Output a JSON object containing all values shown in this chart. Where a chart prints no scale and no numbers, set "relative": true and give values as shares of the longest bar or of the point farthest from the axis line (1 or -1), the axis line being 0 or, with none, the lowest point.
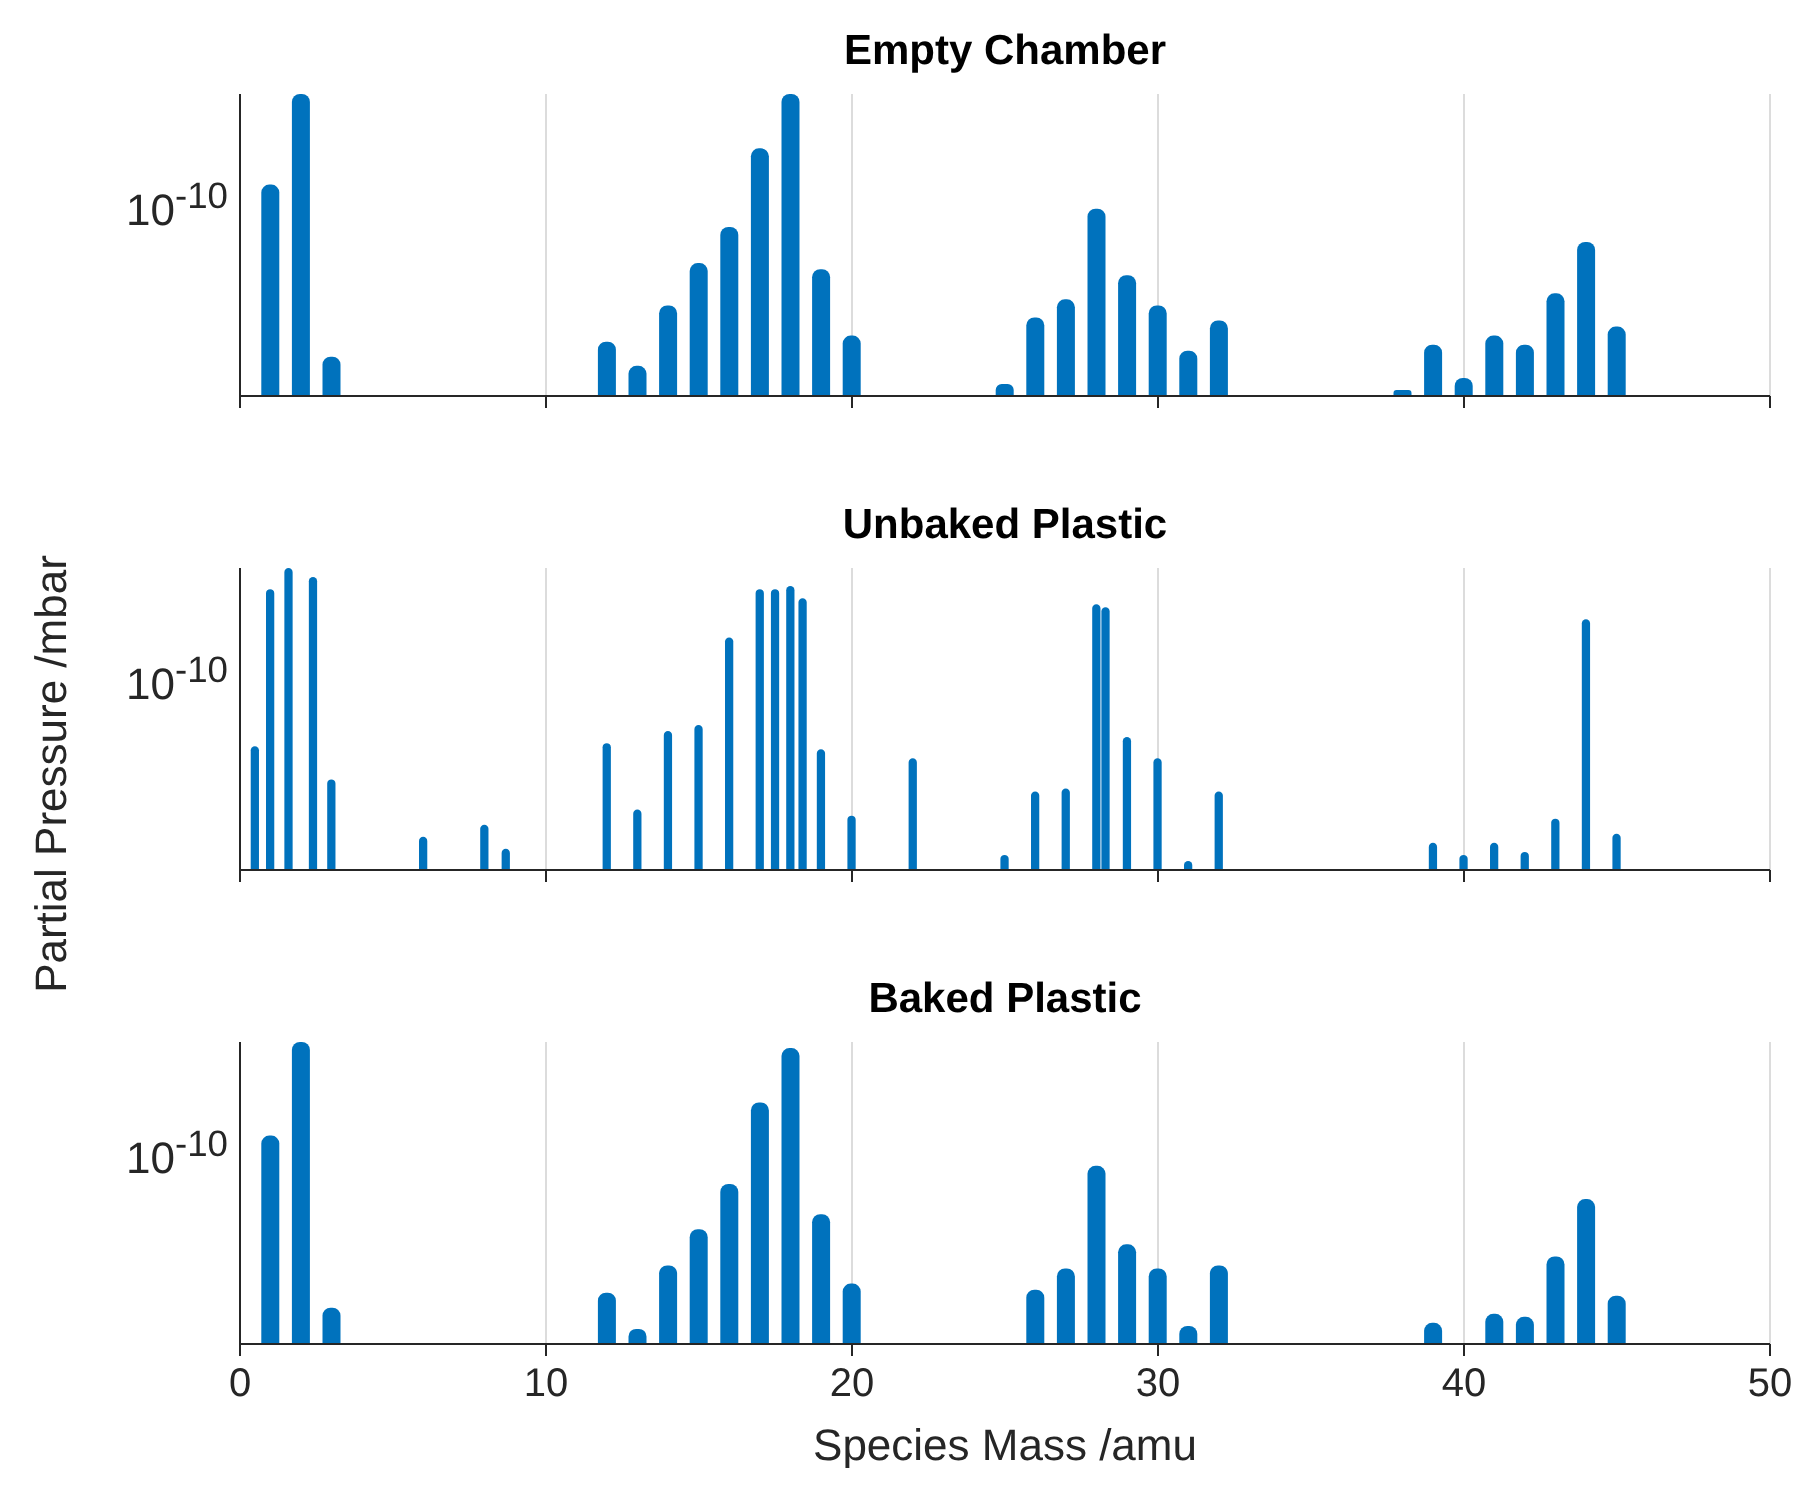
{
  "chart_data": [
    {
      "type": "bar",
      "title": "Empty Chamber",
      "annotations": [
        "10$^{-10}$"
      ],
      "relative": true,
      "x": [
        1,
        2,
        3,
        12,
        13,
        14,
        15,
        16,
        17,
        18,
        19,
        20,
        25,
        26,
        27,
        28,
        29,
        30,
        31,
        32,
        38,
        39,
        40,
        41,
        42,
        43,
        44,
        45
      ],
      "values": [
        0.7,
        1.0,
        0.13,
        0.18,
        0.1,
        0.3,
        0.44,
        0.56,
        0.82,
        1.0,
        0.42,
        0.2,
        0.04,
        0.26,
        0.32,
        0.62,
        0.4,
        0.3,
        0.15,
        0.25,
        0.02,
        0.17,
        0.06,
        0.2,
        0.17,
        0.34,
        0.51,
        0.23
      ],
      "color": "#0072bd",
      "xlim": [
        0,
        50
      ],
      "xticks": [
        0,
        10,
        20,
        30,
        40,
        50
      ],
      "grid": "x",
      "tick_labels": "y"
    },
    {
      "type": "bar",
      "title": "Unbaked Plastic",
      "annotations": [
        "10$^{-10}$"
      ],
      "ylabel": "Partial Pressure /mbar",
      "relative": true,
      "x": [
        0.5,
        1,
        1.6,
        2.4,
        3,
        6,
        8,
        8.7,
        12,
        13,
        14,
        15,
        16,
        17,
        17.5,
        18,
        18.4,
        19,
        20,
        22,
        25,
        26,
        27,
        28,
        28.3,
        29,
        30,
        31,
        32,
        39,
        40,
        41,
        42,
        43,
        44,
        45
      ],
      "values": [
        0.41,
        0.93,
        1.0,
        0.97,
        0.3,
        0.11,
        0.15,
        0.07,
        0.42,
        0.2,
        0.46,
        0.48,
        0.77,
        0.93,
        0.93,
        0.94,
        0.9,
        0.4,
        0.18,
        0.37,
        0.05,
        0.26,
        0.27,
        0.88,
        0.87,
        0.44,
        0.37,
        0.03,
        0.26,
        0.09,
        0.05,
        0.09,
        0.06,
        0.17,
        0.83,
        0.12
      ],
      "color": "#0072bd",
      "xlim": [
        0,
        50
      ],
      "xticks": [
        0,
        10,
        20,
        30,
        40,
        50
      ],
      "grid": "x",
      "tick_labels": "y"
    },
    {
      "type": "bar",
      "title": "Baked Plastic",
      "annotations": [
        "10$^{-10}$"
      ],
      "xlabel": "Species Mass /amu",
      "relative": true,
      "x": [
        1,
        2,
        3,
        12,
        13,
        14,
        15,
        16,
        17,
        18,
        19,
        20,
        26,
        27,
        28,
        29,
        30,
        31,
        32,
        39,
        41,
        42,
        43,
        44,
        45
      ],
      "values": [
        0.69,
        1.0,
        0.12,
        0.17,
        0.05,
        0.26,
        0.38,
        0.53,
        0.8,
        0.98,
        0.43,
        0.2,
        0.18,
        0.25,
        0.59,
        0.33,
        0.25,
        0.06,
        0.26,
        0.07,
        0.1,
        0.09,
        0.29,
        0.48,
        0.16
      ],
      "color": "#0072bd",
      "xlim": [
        0,
        50
      ],
      "xticks": [
        0,
        10,
        20,
        30,
        40,
        50
      ],
      "grid": "x"
    }
  ]
}
